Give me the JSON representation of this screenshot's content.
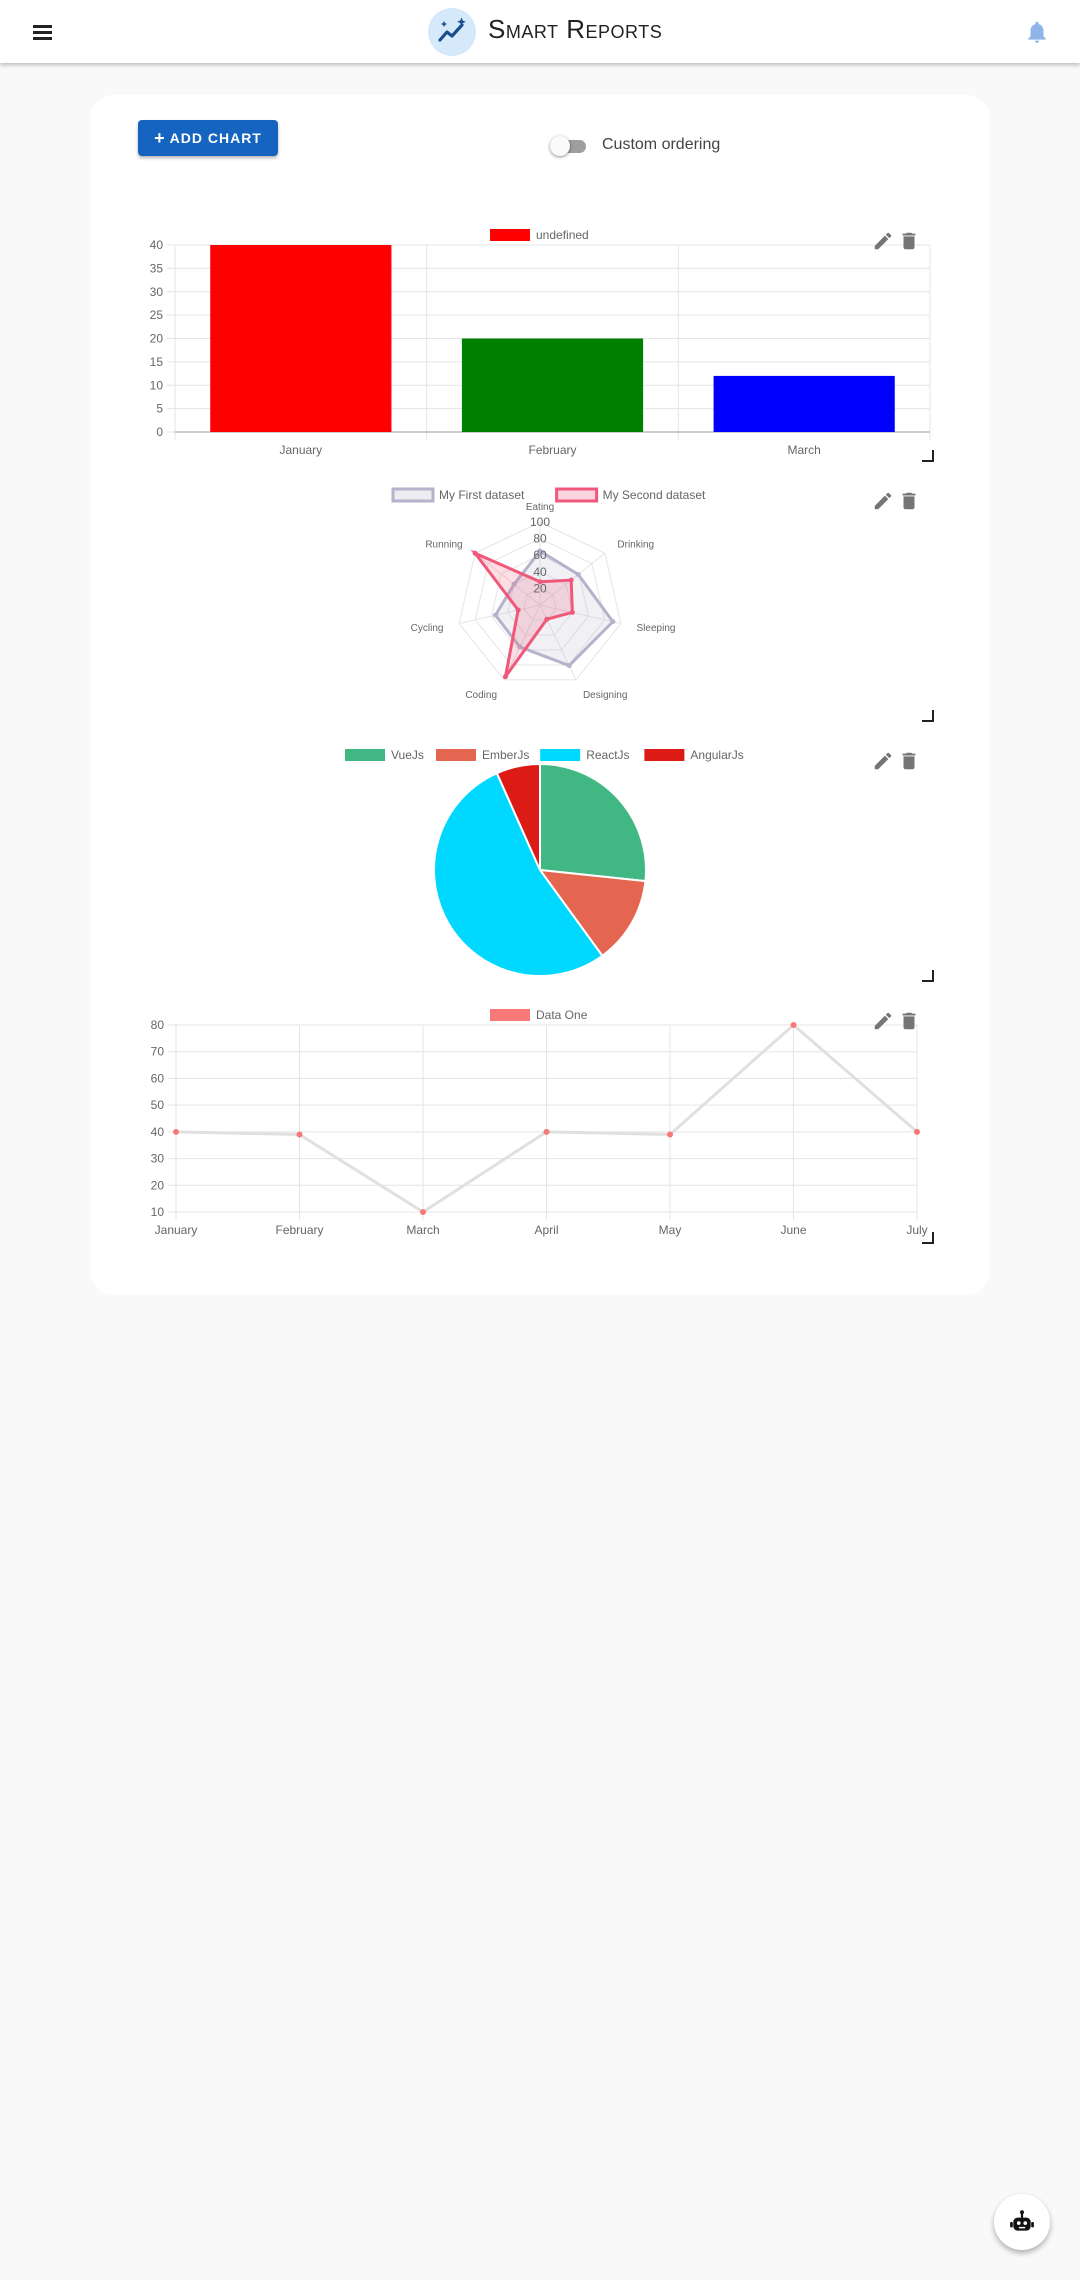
{
  "appbar": {
    "title": "Smart Reports",
    "menu_icon": "menu-icon",
    "logo_icon": "trending-chart-icon",
    "bell_icon": "bell-icon",
    "bell_color": "#90b4e8"
  },
  "toolbar": {
    "add_chart_label": "ADD CHART",
    "custom_ordering_label": "Custom ordering",
    "custom_ordering_on": false
  },
  "assistant_icon": "robot-icon",
  "chart_data": [
    {
      "type": "bar",
      "categories": [
        "January",
        "February",
        "March"
      ],
      "values": [
        40,
        20,
        12
      ],
      "colors": [
        "#ff0000",
        "#008000",
        "#0000ff"
      ],
      "legend": [
        "undefined"
      ],
      "legend_color": "#ff0000",
      "yticks": [
        "0",
        "5",
        "10",
        "15",
        "20",
        "25",
        "30",
        "35",
        "40"
      ],
      "ylim": [
        0,
        40
      ],
      "grid": true,
      "legend_position": "top"
    },
    {
      "type": "radar",
      "labels": [
        "Eating",
        "Drinking",
        "Sleeping",
        "Designing",
        "Coding",
        "Cycling",
        "Running"
      ],
      "series": [
        {
          "name": "My First dataset",
          "values": [
            65,
            59,
            90,
            81,
            56,
            55,
            40
          ],
          "color": "#b3b3cc"
        },
        {
          "name": "My Second dataset",
          "values": [
            28,
            48,
            40,
            19,
            96,
            27,
            100
          ],
          "color": "#f0587a"
        }
      ],
      "rticks": [
        "20",
        "40",
        "60",
        "80",
        "100"
      ],
      "rlim": [
        0,
        100
      ],
      "legend_position": "top"
    },
    {
      "type": "pie",
      "labels": [
        "VueJs",
        "EmberJs",
        "ReactJs",
        "AngularJs"
      ],
      "values": [
        40,
        20,
        80,
        10
      ],
      "colors": [
        "#41b883",
        "#e46651",
        "#00d8ff",
        "#dd1b16"
      ],
      "legend_position": "top"
    },
    {
      "type": "line",
      "categories": [
        "January",
        "February",
        "March",
        "April",
        "May",
        "June",
        "July"
      ],
      "series": [
        {
          "name": "Data One",
          "values": [
            40,
            39,
            10,
            40,
            39,
            80,
            40
          ]
        }
      ],
      "line_color": "#e0e0e0",
      "point_color": "#f87979",
      "yticks": [
        "10",
        "20",
        "30",
        "40",
        "50",
        "60",
        "70",
        "80"
      ],
      "ylim": [
        10,
        80
      ],
      "grid": true,
      "legend_position": "top"
    }
  ]
}
